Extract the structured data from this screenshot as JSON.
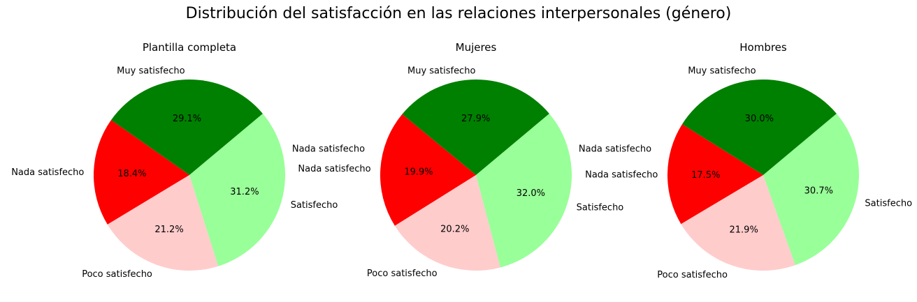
{
  "figure": {
    "title": "Distribución del satisfacción en las relaciones interpersonales (género)"
  },
  "chart_data": [
    {
      "type": "pie",
      "title": "Plantilla completa",
      "labels": [
        "Muy satisfecho",
        "Nada satisfecho",
        "Poco satisfecho",
        "Satisfecho"
      ],
      "values": [
        29.1,
        18.4,
        21.2,
        31.2
      ],
      "percent_labels": [
        "29.1%",
        "18.4%",
        "21.2%",
        "31.2%"
      ],
      "colors": [
        "#008000",
        "#ff0000",
        "#ffcccc",
        "#99ff99"
      ],
      "start_angle_deg": 40,
      "direction": "counterclockwise",
      "annotations": [
        "Nada satisfecho"
      ]
    },
    {
      "type": "pie",
      "title": "Mujeres",
      "labels": [
        "Muy satisfecho",
        "Nada satisfecho",
        "Poco satisfecho",
        "Satisfecho"
      ],
      "values": [
        27.9,
        19.9,
        20.2,
        32.0
      ],
      "percent_labels": [
        "27.9%",
        "19.9%",
        "20.2%",
        "32.0%"
      ],
      "colors": [
        "#008000",
        "#ff0000",
        "#ffcccc",
        "#99ff99"
      ],
      "start_angle_deg": 40,
      "direction": "counterclockwise",
      "annotations": [
        "Nada satisfecho"
      ]
    },
    {
      "type": "pie",
      "title": "Hombres",
      "labels": [
        "Muy satisfecho",
        "Nada satisfecho",
        "Poco satisfecho",
        "Satisfecho"
      ],
      "values": [
        30.0,
        17.5,
        21.9,
        30.7
      ],
      "percent_labels": [
        "30.0%",
        "17.5%",
        "21.9%",
        "30.7%"
      ],
      "colors": [
        "#008000",
        "#ff0000",
        "#ffcccc",
        "#99ff99"
      ],
      "start_angle_deg": 40,
      "direction": "counterclockwise",
      "annotations": []
    }
  ]
}
